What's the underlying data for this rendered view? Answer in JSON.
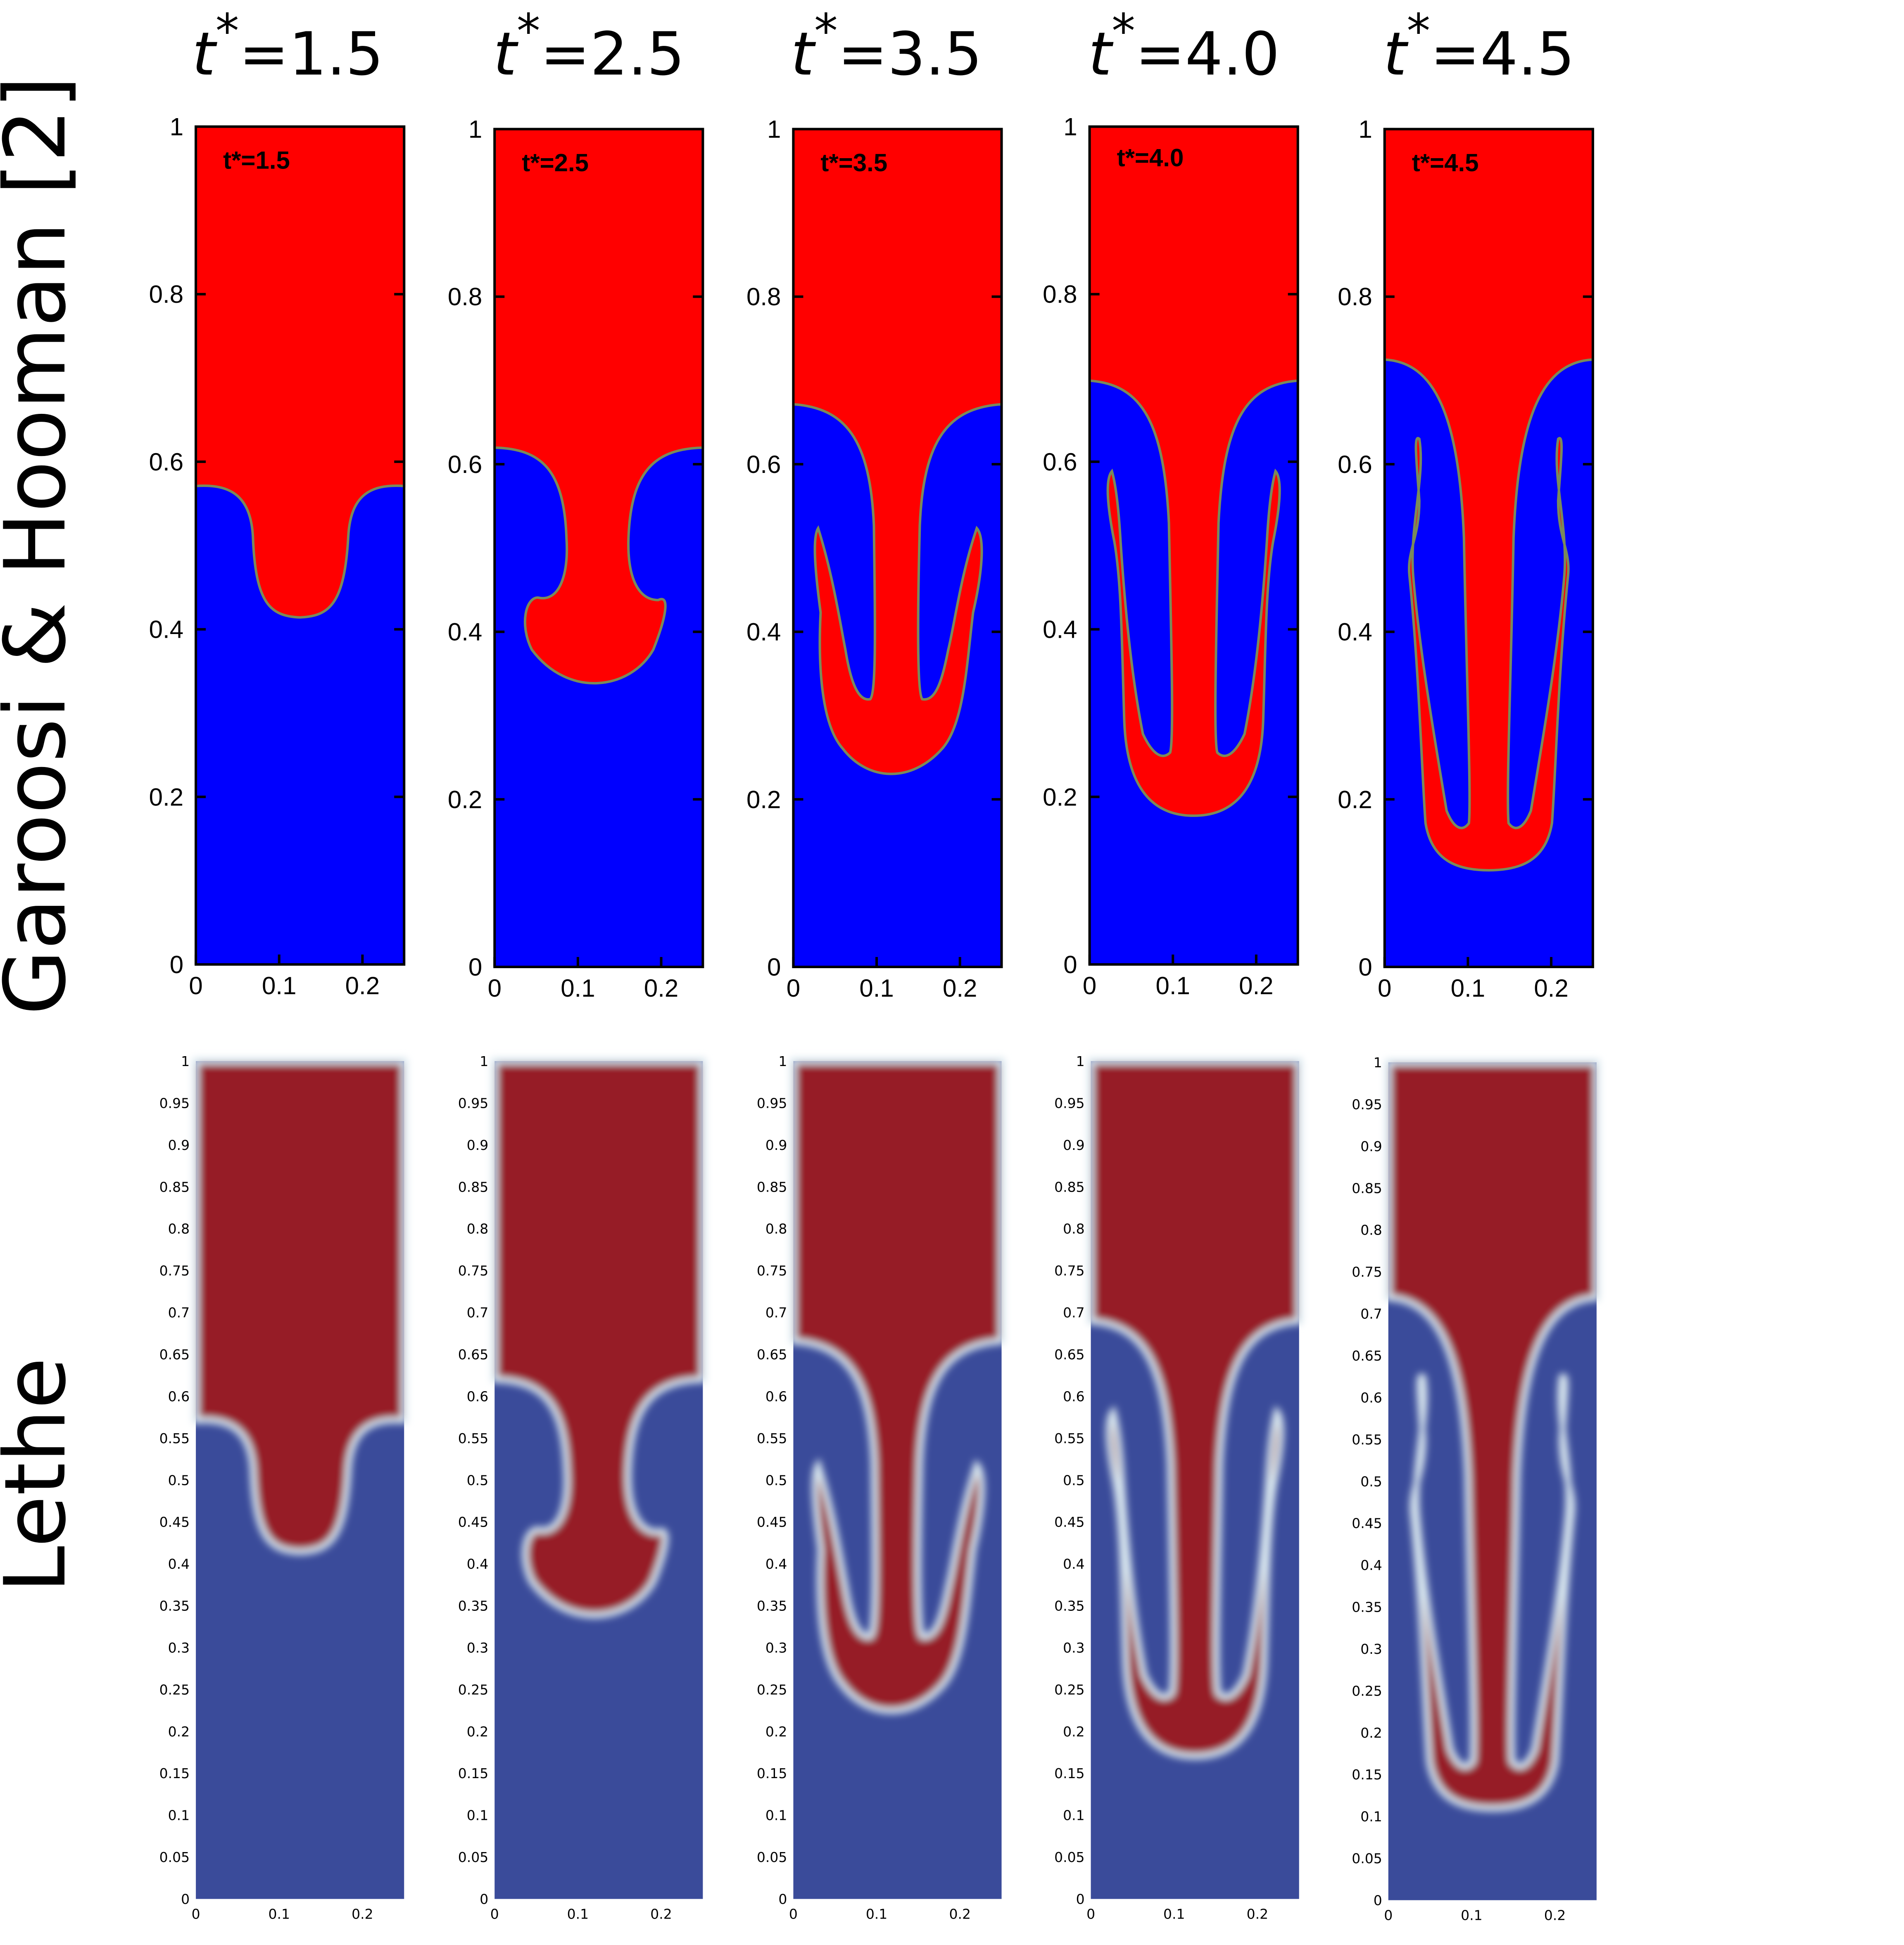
{
  "figure": {
    "row_labels": {
      "reference": "Garoosi & Hooman [2]",
      "simulation": "Lethe"
    },
    "columns": [
      {
        "t_symbol": "t",
        "t_star": "*",
        "t_value": "=1.5",
        "panel_tag": "t*=1.5"
      },
      {
        "t_symbol": "t",
        "t_star": "*",
        "t_value": "=2.5",
        "panel_tag": "t*=2.5"
      },
      {
        "t_symbol": "t",
        "t_star": "*",
        "t_value": "=3.5",
        "panel_tag": "t*=3.5"
      },
      {
        "t_symbol": "t",
        "t_star": "*",
        "t_value": "=4.0",
        "panel_tag": "t*=4.0"
      },
      {
        "t_symbol": "t",
        "t_star": "*",
        "t_value": "=4.5",
        "panel_tag": "t*=4.5"
      }
    ],
    "axes_reference": {
      "x_ticks": [
        "0",
        "0.1",
        "0.2"
      ],
      "y_ticks": [
        "0",
        "0.2",
        "0.4",
        "0.6",
        "0.8",
        "1"
      ]
    },
    "axes_simulation": {
      "x_ticks": [
        "0",
        "0.1",
        "0.2"
      ],
      "y_ticks": [
        "0",
        "0.05",
        "0.1",
        "0.15",
        "0.2",
        "0.25",
        "0.3",
        "0.35",
        "0.4",
        "0.45",
        "0.5",
        "0.55",
        "0.6",
        "0.65",
        "0.7",
        "0.75",
        "0.8",
        "0.85",
        "0.9",
        "0.95",
        "1"
      ]
    },
    "colors": {
      "reference_heavy": "#ff0000",
      "reference_light": "#0000ff",
      "simulation_heavy": "#961f25",
      "simulation_light": "#3a4b9a",
      "interface_ref": "#7a8a5a",
      "interface_sim": "#d8e6ee"
    }
  }
}
